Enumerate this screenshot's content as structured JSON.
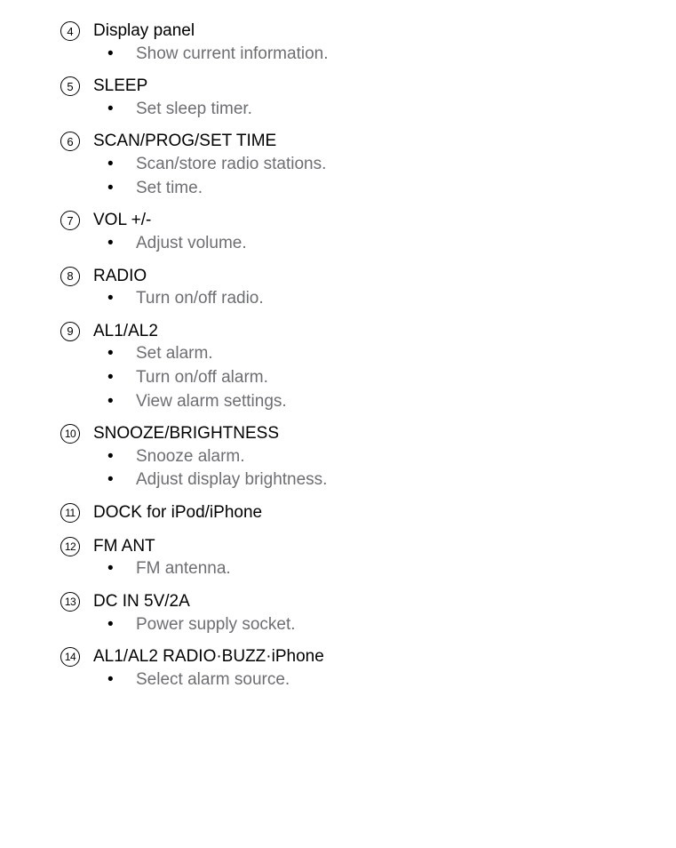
{
  "items": [
    {
      "num": "4",
      "title": "Display panel",
      "bullets": [
        "Show current information."
      ]
    },
    {
      "num": "5",
      "title": "SLEEP",
      "bullets": [
        "Set sleep timer."
      ]
    },
    {
      "num": "6",
      "title": "SCAN/PROG/SET TIME",
      "bullets": [
        "Scan/store radio stations.",
        "Set time."
      ]
    },
    {
      "num": "7",
      "title": "VOL +/-",
      "bullets": [
        "Adjust volume."
      ]
    },
    {
      "num": "8",
      "title": "RADIO",
      "bullets": [
        "Turn on/off radio."
      ]
    },
    {
      "num": "9",
      "title": "AL1/AL2",
      "bullets": [
        "Set alarm.",
        "Turn on/off alarm.",
        "View alarm settings."
      ]
    },
    {
      "num": "10",
      "title": "SNOOZE/BRIGHTNESS",
      "bullets": [
        "Snooze alarm.",
        "Adjust display brightness."
      ]
    },
    {
      "num": "11",
      "title": "DOCK for iPod/iPhone",
      "bullets": []
    },
    {
      "num": "12",
      "title": "FM ANT",
      "bullets": [
        "FM antenna."
      ]
    },
    {
      "num": "13",
      "title": "DC IN 5V/2A",
      "bullets": [
        "Power supply socket."
      ]
    },
    {
      "num": "14",
      "title": "AL1/AL2 RADIO·BUZZ·iPhone",
      "bullets": [
        "Select alarm source."
      ]
    }
  ]
}
